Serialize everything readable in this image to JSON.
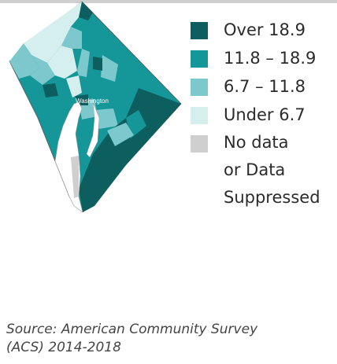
{
  "map": {
    "city_label": "Washington",
    "colors": {
      "over": "#0d5f5f",
      "high": "#15979a",
      "mid": "#7cc8cc",
      "low": "#d5efef",
      "nodata": "#cfcfcf",
      "river": "#ffffff"
    }
  },
  "legend": {
    "items": [
      {
        "label": "Over 18.9",
        "color": "#0d5f5f"
      },
      {
        "label": "11.8 – 18.9",
        "color": "#15979a"
      },
      {
        "label": "6.7 – 11.8",
        "color": "#7cc8cc"
      },
      {
        "label": "Under 6.7",
        "color": "#d5efef"
      },
      {
        "label": "No data\nor Data\nSuppressed",
        "color": "#cfcfcf"
      }
    ]
  },
  "source": "Source: American Community Survey\n(ACS) 2014-2018"
}
